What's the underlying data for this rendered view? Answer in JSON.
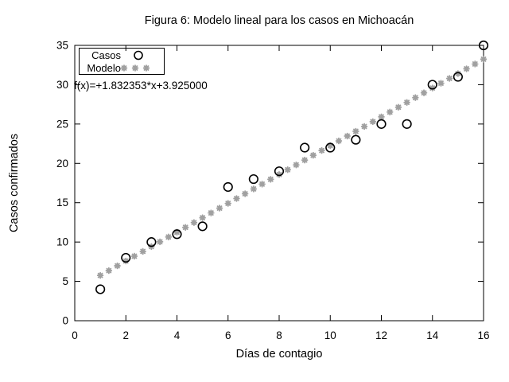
{
  "chart_data": {
    "type": "scatter",
    "title": "Figura 6: Modelo lineal para los casos en Michoacán",
    "xlabel": "Días de contagio",
    "ylabel": "Casos confirmados",
    "xlim": [
      0,
      16
    ],
    "ylim": [
      0,
      35
    ],
    "xticks": [
      0,
      2,
      4,
      6,
      8,
      10,
      12,
      14,
      16
    ],
    "yticks": [
      0,
      5,
      10,
      15,
      20,
      25,
      30,
      35
    ],
    "grid": false,
    "legend_position": "top-left",
    "annotation": "f(x)=+1.832353*x+3.925000",
    "series": [
      {
        "name": "Casos",
        "marker": "circle",
        "color": "#000000",
        "x": [
          1,
          2,
          3,
          4,
          5,
          6,
          7,
          8,
          9,
          10,
          11,
          12,
          13,
          14,
          15,
          16
        ],
        "y": [
          4,
          8,
          10,
          11,
          12,
          17,
          18,
          19,
          22,
          22,
          23,
          25,
          25,
          30,
          31,
          35
        ]
      },
      {
        "name": "Modelo",
        "marker": "asterisk",
        "color": "#a0a0a0",
        "model": {
          "slope": 1.832353,
          "intercept": 3.925,
          "x_start": 1,
          "x_end": 16,
          "samples": 46
        }
      }
    ]
  }
}
